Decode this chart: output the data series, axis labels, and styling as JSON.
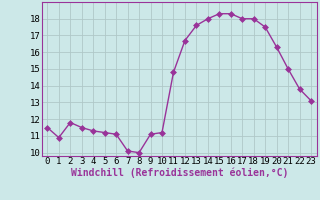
{
  "x": [
    0,
    1,
    2,
    3,
    4,
    5,
    6,
    7,
    8,
    9,
    10,
    11,
    12,
    13,
    14,
    15,
    16,
    17,
    18,
    19,
    20,
    21,
    22,
    23
  ],
  "y": [
    11.5,
    10.9,
    11.8,
    11.5,
    11.3,
    11.2,
    11.1,
    10.1,
    10.0,
    11.1,
    11.2,
    14.8,
    16.7,
    17.6,
    18.0,
    18.3,
    18.3,
    18.0,
    18.0,
    17.5,
    16.3,
    15.0,
    13.8,
    13.1
  ],
  "line_color": "#993399",
  "marker": "D",
  "bg_color": "#cce8e8",
  "grid_color": "#b0c8c8",
  "xlabel": "Windchill (Refroidissement éolien,°C)",
  "ylim": [
    9.8,
    19.0
  ],
  "yticks": [
    10,
    11,
    12,
    13,
    14,
    15,
    16,
    17,
    18
  ],
  "xticks": [
    0,
    1,
    2,
    3,
    4,
    5,
    6,
    7,
    8,
    9,
    10,
    11,
    12,
    13,
    14,
    15,
    16,
    17,
    18,
    19,
    20,
    21,
    22,
    23
  ],
  "tick_label_fontsize": 6.5,
  "xlabel_fontsize": 7,
  "spine_color": "#993399",
  "marker_color": "#993399",
  "marker_size": 3,
  "line_width": 1.0
}
